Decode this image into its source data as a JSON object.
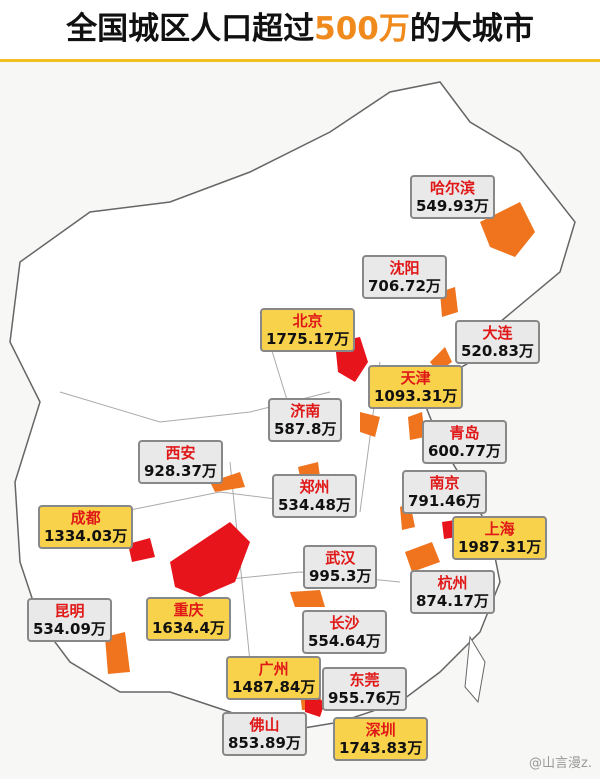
{
  "header": {
    "title_parts": [
      "全国城区人口超过",
      "500万",
      "的大城市"
    ]
  },
  "cities": [
    {
      "name": "哈尔滨",
      "value": "549.93万",
      "color": "#e9e9e9"
    },
    {
      "name": "沈阳",
      "value": "706.72万",
      "color": "#e9e9e9"
    },
    {
      "name": "北京",
      "value": "1775.17万",
      "color": "#f7d24a"
    },
    {
      "name": "大连",
      "value": "520.83万",
      "color": "#e9e9e9"
    },
    {
      "name": "天津",
      "value": "1093.31万",
      "color": "#f7d24a"
    },
    {
      "name": "济南",
      "value": "587.8万",
      "color": "#e9e9e9"
    },
    {
      "name": "青岛",
      "value": "600.77万",
      "color": "#e9e9e9"
    },
    {
      "name": "西安",
      "value": "928.37万",
      "color": "#e9e9e9"
    },
    {
      "name": "郑州",
      "value": "534.48万",
      "color": "#e9e9e9"
    },
    {
      "name": "南京",
      "value": "791.46万",
      "color": "#e9e9e9"
    },
    {
      "name": "成都",
      "value": "1334.03万",
      "color": "#f7d24a"
    },
    {
      "name": "上海",
      "value": "1987.31万",
      "color": "#f7d24a"
    },
    {
      "name": "武汉",
      "value": "995.3万",
      "color": "#e9e9e9"
    },
    {
      "name": "杭州",
      "value": "874.17万",
      "color": "#e9e9e9"
    },
    {
      "name": "昆明",
      "value": "534.09万",
      "color": "#e9e9e9"
    },
    {
      "name": "重庆",
      "value": "1634.4万",
      "color": "#f7d24a"
    },
    {
      "name": "长沙",
      "value": "554.64万",
      "color": "#e9e9e9"
    },
    {
      "name": "广州",
      "value": "1487.84万",
      "color": "#f7d24a"
    },
    {
      "name": "东莞",
      "value": "955.76万",
      "color": "#e9e9e9"
    },
    {
      "name": "佛山",
      "value": "853.89万",
      "color": "#e9e9e9"
    },
    {
      "name": "深圳",
      "value": "1743.83万",
      "color": "#f7d24a"
    }
  ],
  "watermark": "@山言漫z."
}
